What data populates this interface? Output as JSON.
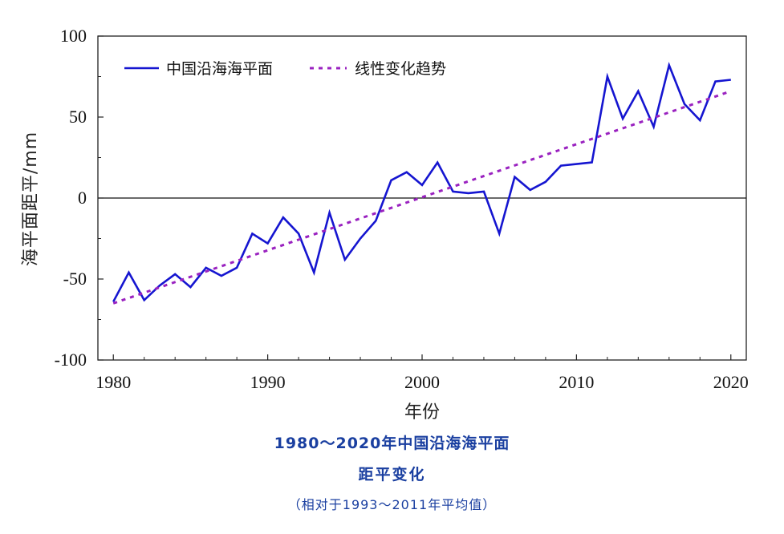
{
  "chart_data": {
    "type": "line",
    "xlabel": "年份",
    "ylabel": "海平面距平/mm",
    "xlim": [
      1979,
      2021
    ],
    "ylim": [
      -100,
      100
    ],
    "x_ticks": [
      1980,
      1990,
      2000,
      2010,
      2020
    ],
    "y_ticks": [
      -100,
      -50,
      0,
      50,
      100
    ],
    "reference_line": 0,
    "legend_position": "top-left",
    "series": [
      {
        "name": "中国沿海海平面",
        "style": "solid",
        "color": "#1515d0",
        "x": [
          1980,
          1981,
          1982,
          1983,
          1984,
          1985,
          1986,
          1987,
          1988,
          1989,
          1990,
          1991,
          1992,
          1993,
          1994,
          1995,
          1996,
          1997,
          1998,
          1999,
          2000,
          2001,
          2002,
          2003,
          2004,
          2005,
          2006,
          2007,
          2008,
          2009,
          2010,
          2011,
          2012,
          2013,
          2014,
          2015,
          2016,
          2017,
          2018,
          2019,
          2020
        ],
        "values": [
          -64,
          -46,
          -63,
          -54,
          -47,
          -55,
          -43,
          -48,
          -43,
          -22,
          -28,
          -12,
          -22,
          -46,
          -9,
          -38,
          -25,
          -14,
          11,
          16,
          8,
          22,
          4,
          3,
          4,
          -22,
          13,
          5,
          10,
          20,
          21,
          22,
          75,
          49,
          66,
          44,
          82,
          58,
          48,
          72,
          73
        ]
      },
      {
        "name": "线性变化趋势",
        "style": "dotted",
        "color": "#9a22c0",
        "x": [
          1980,
          2020
        ],
        "values": [
          -65,
          66
        ]
      }
    ]
  },
  "captions": {
    "line1": "1980～2020年中国沿海海平面",
    "line2": "距平变化",
    "line3": "（相对于1993～2011年平均值）"
  }
}
